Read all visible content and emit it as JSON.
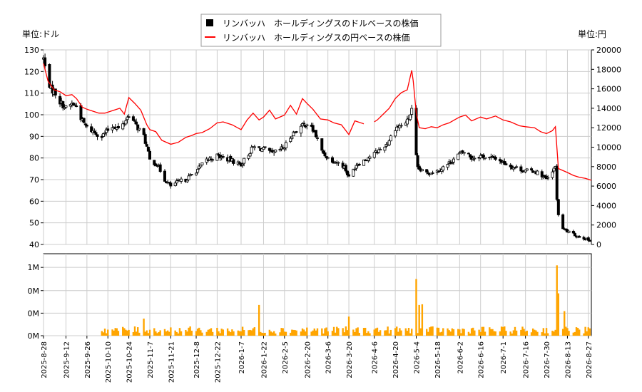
{
  "chart_data": [
    {
      "type": "candlestick",
      "title": "",
      "left_unit_label": "単位:ドル",
      "right_unit_label": "単位:円",
      "legend": {
        "placement": "top-center",
        "entries": [
          {
            "label": "リンバッハ　ホールディングスのドルベースの株価",
            "marker": "square",
            "color": "#000000"
          },
          {
            "label": "リンバッハ　ホールディングスの円ベースの株価",
            "marker": "line",
            "color": "#ff0000"
          }
        ]
      },
      "y_left": {
        "min": 40,
        "max": 130,
        "ticks": [
          40,
          50,
          60,
          70,
          80,
          90,
          100,
          110,
          120,
          130
        ]
      },
      "y_right": {
        "min": 0,
        "max": 20000,
        "ticks": [
          0,
          2000,
          4000,
          6000,
          8000,
          10000,
          12000,
          14000,
          16000,
          18000,
          20000
        ]
      },
      "x_start": "2025-08-28",
      "x_end": "2026-08-29",
      "grid": true,
      "x_tick_labels": [
        "2025-8-28",
        "2025-9-12",
        "2025-9-26",
        "2025-10-10",
        "2025-10-24",
        "2025-11-7",
        "2025-11-21",
        "2025-12-8",
        "2025-12-22",
        "2026-1-7",
        "2026-1-22",
        "2026-2-5",
        "2026-2-20",
        "2026-3-6",
        "2026-3-20",
        "2026-4-6",
        "2026-4-20",
        "2026-5-4",
        "2026-5-18",
        "2026-6-2",
        "2026-6-16",
        "2026-7-1",
        "2026-7-16",
        "2026-7-30",
        "2026-8-13",
        "2026-8-27"
      ],
      "usd_series": {
        "name": "リンバッハ　ホールディングスのドルベースの株価",
        "anchors": [
          [
            "2025-08-28",
            126
          ],
          [
            "2025-08-30",
            118
          ],
          [
            "2025-09-02",
            112
          ],
          [
            "2025-09-05",
            110
          ],
          [
            "2025-09-08",
            106
          ],
          [
            "2025-09-12",
            103
          ],
          [
            "2025-09-16",
            105
          ],
          [
            "2025-09-19",
            104
          ],
          [
            "2025-09-23",
            97
          ],
          [
            "2025-09-26",
            94
          ],
          [
            "2025-10-01",
            92
          ],
          [
            "2025-10-06",
            90
          ],
          [
            "2025-10-10",
            93
          ],
          [
            "2025-10-14",
            95
          ],
          [
            "2025-10-18",
            93
          ],
          [
            "2025-10-24",
            100
          ],
          [
            "2025-10-28",
            96
          ],
          [
            "2025-11-03",
            90
          ],
          [
            "2025-11-05",
            85
          ],
          [
            "2025-11-07",
            79
          ],
          [
            "2025-11-12",
            77
          ],
          [
            "2025-11-17",
            70
          ],
          [
            "2025-11-21",
            67
          ],
          [
            "2025-11-26",
            69
          ],
          [
            "2025-12-01",
            70
          ],
          [
            "2025-12-08",
            74
          ],
          [
            "2025-12-15",
            79
          ],
          [
            "2025-12-22",
            81
          ],
          [
            "2025-12-31",
            79
          ],
          [
            "2026-01-07",
            77
          ],
          [
            "2026-01-15",
            85
          ],
          [
            "2026-01-22",
            84
          ],
          [
            "2026-01-28",
            82
          ],
          [
            "2026-02-05",
            85
          ],
          [
            "2026-02-10",
            91
          ],
          [
            "2026-02-15",
            94
          ],
          [
            "2026-02-20",
            96
          ],
          [
            "2026-02-25",
            92
          ],
          [
            "2026-03-02",
            83
          ],
          [
            "2026-03-06",
            80
          ],
          [
            "2026-03-12",
            78
          ],
          [
            "2026-03-17",
            76
          ],
          [
            "2026-03-20",
            71
          ],
          [
            "2026-03-25",
            77
          ],
          [
            "2026-03-30",
            79
          ],
          [
            "2026-04-06",
            82
          ],
          [
            "2026-04-10",
            84
          ],
          [
            "2026-04-15",
            87
          ],
          [
            "2026-04-20",
            94
          ],
          [
            "2026-04-24",
            95
          ],
          [
            "2026-04-28",
            97
          ],
          [
            "2026-05-01",
            102
          ],
          [
            "2026-05-03",
            86
          ],
          [
            "2026-05-05",
            75
          ],
          [
            "2026-05-10",
            73
          ],
          [
            "2026-05-18",
            74
          ],
          [
            "2026-05-25",
            77
          ],
          [
            "2026-06-02",
            82
          ],
          [
            "2026-06-06",
            83
          ],
          [
            "2026-06-10",
            80
          ],
          [
            "2026-06-16",
            81
          ],
          [
            "2026-06-22",
            80
          ],
          [
            "2026-06-26",
            80
          ],
          [
            "2026-07-01",
            78
          ],
          [
            "2026-07-07",
            76
          ],
          [
            "2026-07-12",
            75
          ],
          [
            "2026-07-16",
            74
          ],
          [
            "2026-07-22",
            74
          ],
          [
            "2026-07-27",
            72
          ],
          [
            "2026-07-30",
            70
          ],
          [
            "2026-08-03",
            73
          ],
          [
            "2026-08-05",
            77
          ],
          [
            "2026-08-06",
            60
          ],
          [
            "2026-08-08",
            48
          ],
          [
            "2026-08-13",
            46
          ],
          [
            "2026-08-19",
            44
          ],
          [
            "2026-08-24",
            43
          ],
          [
            "2026-08-27",
            42
          ],
          [
            "2026-08-29",
            42
          ]
        ]
      },
      "jpy_series": {
        "name": "リンバッハ　ホールディングスの円ベースの株価",
        "color": "#ff0000",
        "points": [
          [
            "2025-08-28",
            18600
          ],
          [
            "2025-08-31",
            16800
          ],
          [
            "2025-09-04",
            15900
          ],
          [
            "2025-09-08",
            15700
          ],
          [
            "2025-09-12",
            15300
          ],
          [
            "2025-09-16",
            15400
          ],
          [
            "2025-09-19",
            15000
          ],
          [
            "2025-09-23",
            14100
          ],
          [
            "2025-09-26",
            13900
          ],
          [
            "2025-09-30",
            13700
          ],
          [
            "2025-10-04",
            13500
          ],
          [
            "2025-10-08",
            13500
          ],
          [
            "2025-10-10",
            13600
          ],
          [
            "2025-10-14",
            13800
          ],
          [
            "2025-10-18",
            14000
          ],
          [
            "2025-10-21",
            13400
          ],
          [
            "2025-10-24",
            15100
          ],
          [
            "2025-10-28",
            14500
          ],
          [
            "2025-11-01",
            13800
          ],
          [
            "2025-11-05",
            12300
          ],
          [
            "2025-11-07",
            11800
          ],
          [
            "2025-11-11",
            11600
          ],
          [
            "2025-11-15",
            10700
          ],
          [
            "2025-11-21",
            10300
          ],
          [
            "2025-11-26",
            10500
          ],
          [
            "2025-12-01",
            11000
          ],
          [
            "2025-12-05",
            11200
          ],
          [
            "2025-12-08",
            11400
          ],
          [
            "2025-12-12",
            11500
          ],
          [
            "2025-12-17",
            11900
          ],
          [
            "2025-12-22",
            12500
          ],
          [
            "2025-12-26",
            12600
          ],
          [
            "2026-01-01",
            12300
          ],
          [
            "2026-01-07",
            11800
          ],
          [
            "2026-01-11",
            12800
          ],
          [
            "2026-01-15",
            13500
          ],
          [
            "2026-01-19",
            12800
          ],
          [
            "2026-01-22",
            13100
          ],
          [
            "2026-01-26",
            13800
          ],
          [
            "2026-01-30",
            12900
          ],
          [
            "2026-02-05",
            13300
          ],
          [
            "2026-02-09",
            14300
          ],
          [
            "2026-02-13",
            13400
          ],
          [
            "2026-02-17",
            15000
          ],
          [
            "2026-02-20",
            14500
          ],
          [
            "2026-02-24",
            13900
          ],
          [
            "2026-03-01",
            12900
          ],
          [
            "2026-03-06",
            12800
          ],
          [
            "2026-03-10",
            12500
          ],
          [
            "2026-03-15",
            12300
          ],
          [
            "2026-03-20",
            11300
          ],
          [
            "2026-03-24",
            12700
          ],
          [
            "2026-03-30",
            12400
          ],
          [
            "2026-04-01",
            12500
          ],
          [
            "2026-04-06",
            12600
          ],
          [
            "2026-04-08",
            12800
          ],
          [
            "2026-04-12",
            13400
          ],
          [
            "2026-04-16",
            14000
          ],
          [
            "2026-04-20",
            15000
          ],
          [
            "2026-04-24",
            15600
          ],
          [
            "2026-04-28",
            15900
          ],
          [
            "2026-05-01",
            17900
          ],
          [
            "2026-05-02",
            16800
          ],
          [
            "2026-05-04",
            13500
          ],
          [
            "2026-05-06",
            12000
          ],
          [
            "2026-05-10",
            11900
          ],
          [
            "2026-05-14",
            12100
          ],
          [
            "2026-05-18",
            12000
          ],
          [
            "2026-05-22",
            12300
          ],
          [
            "2026-05-26",
            12500
          ],
          [
            "2026-06-02",
            13100
          ],
          [
            "2026-06-06",
            13300
          ],
          [
            "2026-06-10",
            12700
          ],
          [
            "2026-06-16",
            13100
          ],
          [
            "2026-06-20",
            12900
          ],
          [
            "2026-06-26",
            13200
          ],
          [
            "2026-07-01",
            12800
          ],
          [
            "2026-07-06",
            12600
          ],
          [
            "2026-07-12",
            12200
          ],
          [
            "2026-07-16",
            12100
          ],
          [
            "2026-07-22",
            12000
          ],
          [
            "2026-07-26",
            11600
          ],
          [
            "2026-07-30",
            11400
          ],
          [
            "2026-08-03",
            11700
          ],
          [
            "2026-08-05",
            12100
          ],
          [
            "2026-08-07",
            7800
          ],
          [
            "2026-08-13",
            7400
          ],
          [
            "2026-08-17",
            7100
          ],
          [
            "2026-08-21",
            6900
          ],
          [
            "2026-08-25",
            6800
          ],
          [
            "2026-08-29",
            6600
          ]
        ],
        "gaps": [
          [
            "2026-03-31",
            "2026-04-05"
          ]
        ]
      }
    },
    {
      "type": "bar",
      "title": "",
      "y_ticks": [
        {
          "value": 0,
          "label": "0M"
        },
        {
          "value": 0.33,
          "label": "0M"
        },
        {
          "value": 0.66,
          "label": "0M"
        },
        {
          "value": 1.0,
          "label": "1M"
        }
      ],
      "ylim": [
        0,
        1.2
      ],
      "bar_color": "#ffa500",
      "volume_start": "2025-10-06",
      "typical_volume_m": 0.08,
      "spikes": [
        [
          "2025-11-03",
          0.25
        ],
        [
          "2026-01-19",
          0.45
        ],
        [
          "2026-03-20",
          0.28
        ],
        [
          "2026-05-04",
          0.83
        ],
        [
          "2026-05-06",
          0.45
        ],
        [
          "2026-05-08",
          0.46
        ],
        [
          "2026-06-06",
          0.27
        ],
        [
          "2026-06-13",
          0.27
        ],
        [
          "2026-08-06",
          1.03
        ],
        [
          "2026-08-07",
          0.62
        ],
        [
          "2026-08-11",
          0.36
        ]
      ]
    }
  ]
}
